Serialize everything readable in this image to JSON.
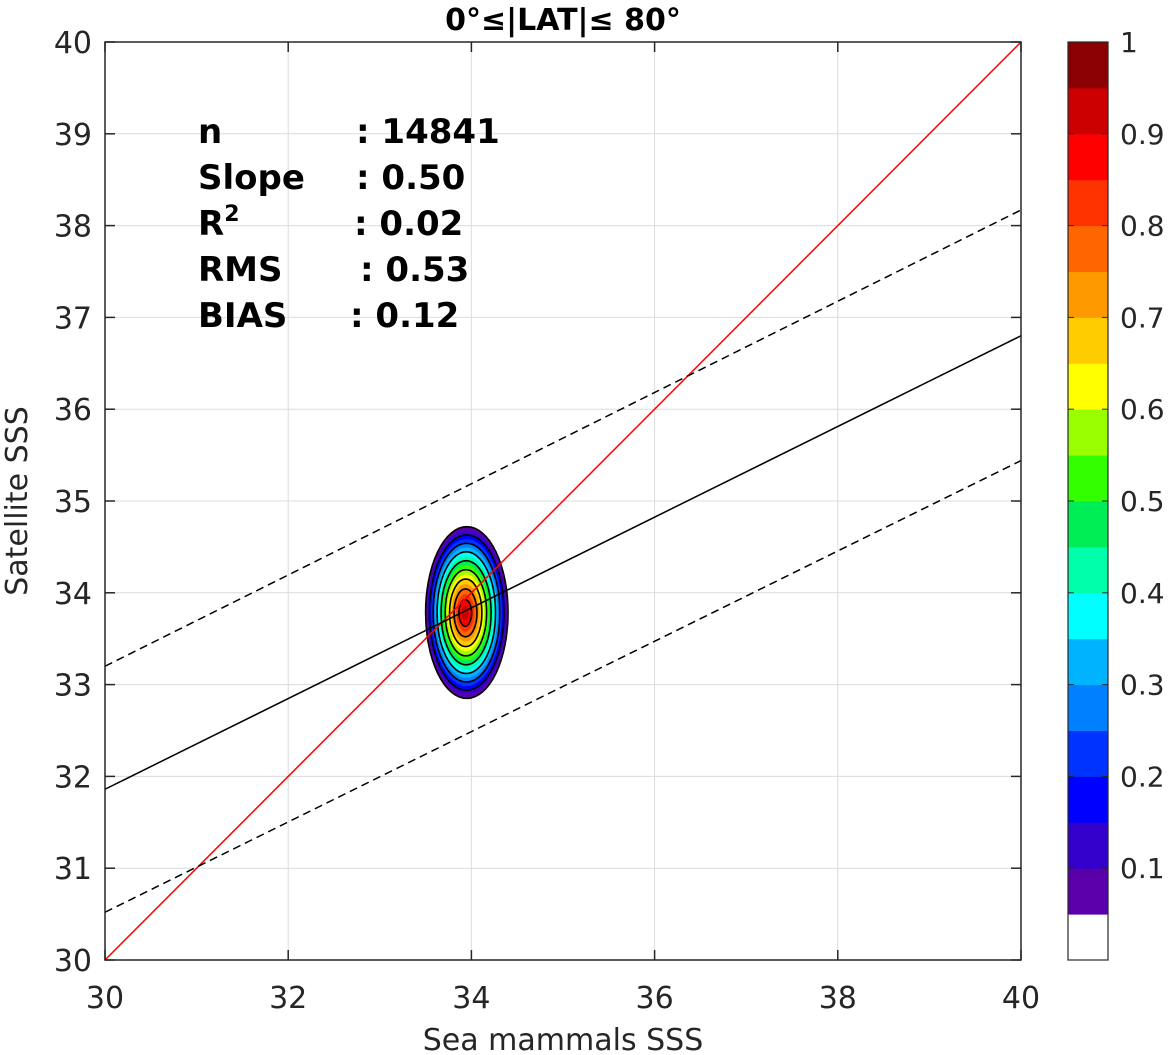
{
  "chart_data": {
    "type": "contour",
    "title": "0°≤|LAT|≤ 80°",
    "xlabel": "Sea mammals SSS",
    "ylabel": "Satellite SSS",
    "xlim": [
      30,
      40
    ],
    "ylim": [
      30,
      40
    ],
    "x_ticks": [
      "30",
      "32",
      "34",
      "36",
      "38",
      "40"
    ],
    "y_ticks": [
      "30",
      "31",
      "32",
      "33",
      "34",
      "35",
      "36",
      "37",
      "38",
      "39",
      "40"
    ],
    "grid": true,
    "stats": [
      {
        "label": "n",
        "value": ": 14841"
      },
      {
        "label": "Slope",
        "value": ": 0.50"
      },
      {
        "label": "R",
        "sup": "2",
        "value": ": 0.02"
      },
      {
        "label": "RMS",
        "value": ": 0.53"
      },
      {
        "label": "BIAS",
        "value": ": 0.12"
      }
    ],
    "lines": [
      {
        "name": "one-to-one",
        "color": "#ff0000",
        "dash": "solid",
        "points": [
          [
            30,
            30
          ],
          [
            40,
            40
          ]
        ]
      },
      {
        "name": "regression",
        "color": "#000000",
        "dash": "solid",
        "points": [
          [
            30,
            31.86
          ],
          [
            40,
            36.8
          ]
        ]
      },
      {
        "name": "upper-bound",
        "color": "#000000",
        "dash": "dashed",
        "points": [
          [
            30,
            33.2
          ],
          [
            40,
            38.17
          ]
        ]
      },
      {
        "name": "lower-bound",
        "color": "#000000",
        "dash": "dashed",
        "points": [
          [
            30,
            30.52
          ],
          [
            40,
            35.44
          ]
        ]
      }
    ],
    "density": {
      "center": [
        33.93,
        33.78
      ],
      "outer_extent_x": [
        33.5,
        34.4
      ],
      "outer_extent_y": [
        32.85,
        34.72
      ],
      "levels": [
        0.05,
        0.1,
        0.2,
        0.3,
        0.4,
        0.5,
        0.6,
        0.7,
        0.8,
        0.9
      ]
    },
    "colorbar": {
      "ticks": [
        "0.1",
        "0.2",
        "0.3",
        "0.4",
        "0.5",
        "0.6",
        "0.7",
        "0.8",
        "0.9",
        "1"
      ],
      "range": [
        0,
        1
      ],
      "colors": [
        "#ffffff",
        "#5a00aa",
        "#3300cc",
        "#0000ff",
        "#0033ff",
        "#0080ff",
        "#00b3ff",
        "#00ffff",
        "#00ffaa",
        "#00ee55",
        "#33ff00",
        "#99ff00",
        "#ffff00",
        "#ffcc00",
        "#ff9900",
        "#ff6600",
        "#ff3300",
        "#ff0000",
        "#cc0000",
        "#8b0000"
      ]
    }
  }
}
